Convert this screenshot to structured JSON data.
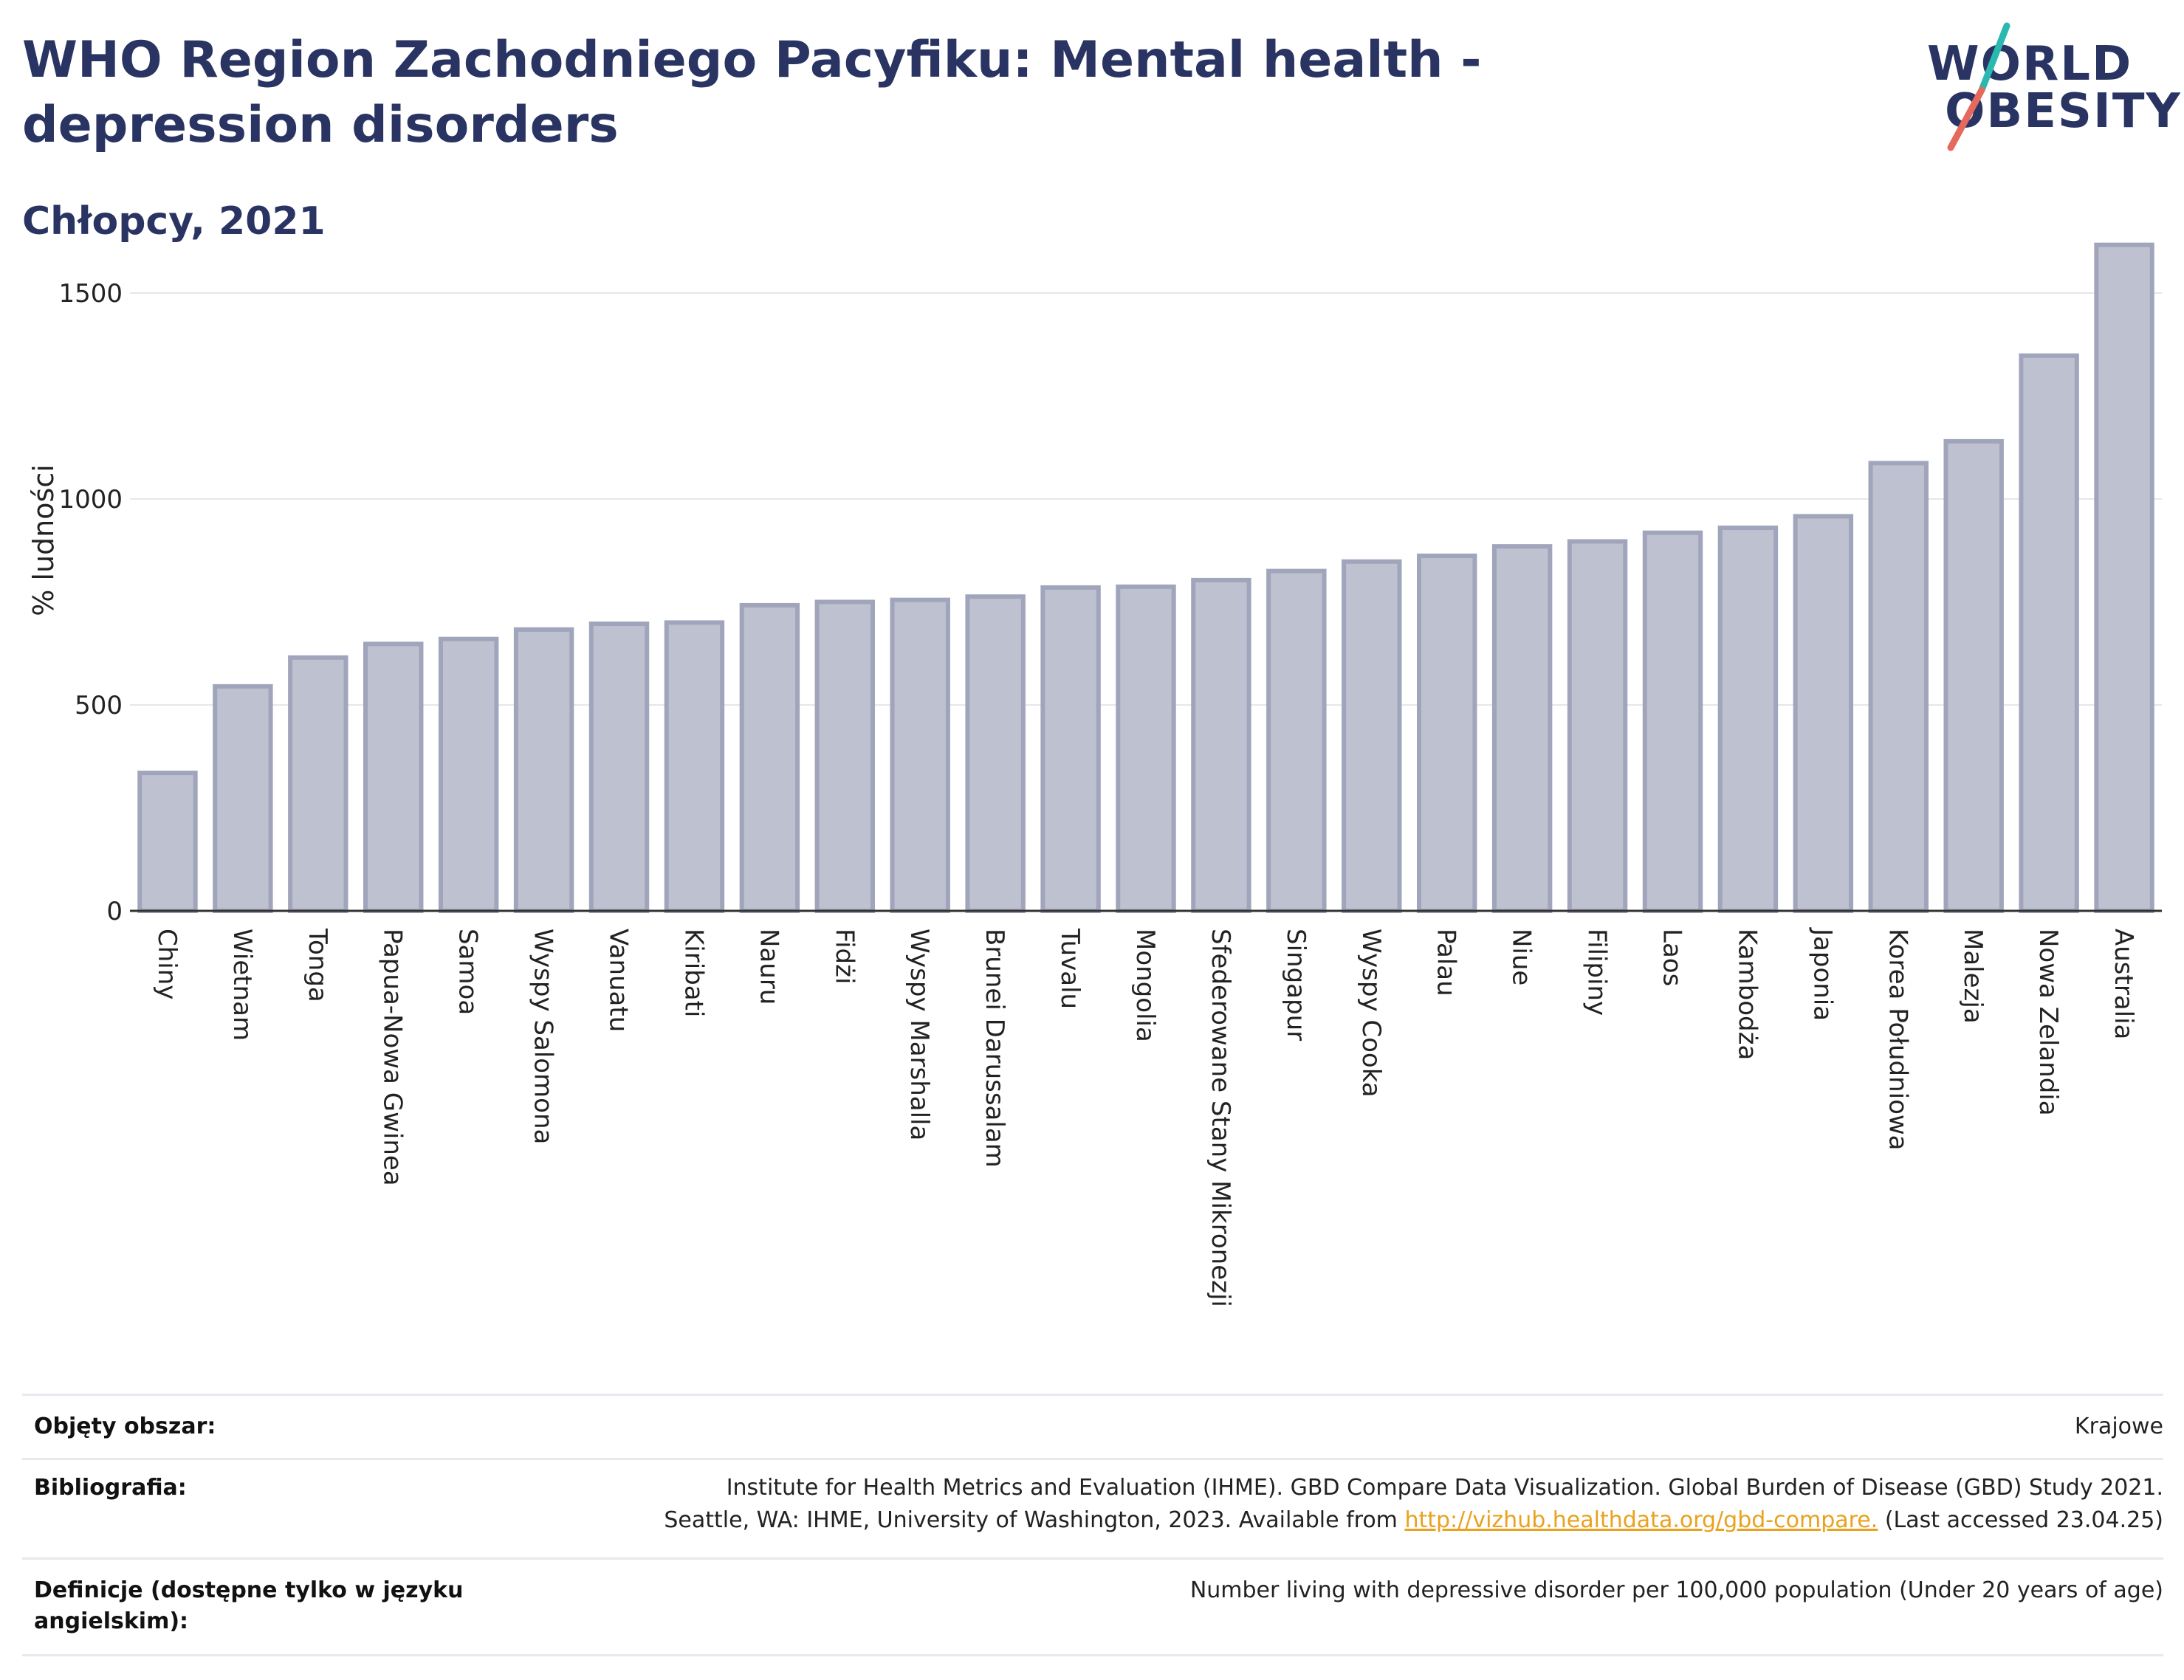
{
  "header": {
    "title": "WHO Region Zachodniego Pacyfiku: Mental health - depression disorders",
    "subtitle": "Chłopcy, 2021"
  },
  "logo": {
    "line1": "WORLD",
    "line2": "OBESITY"
  },
  "colors": {
    "bar_fill": "#bec1cf",
    "bar_stroke": "#a0a5bb",
    "grid": "#e6e6ec",
    "axis": "#333333",
    "link": "#e8a21f",
    "logo_teal": "#2ab8b0",
    "logo_coral": "#e56a5d"
  },
  "chart_data": {
    "type": "bar",
    "ylabel": "% ludności",
    "xlabel": "",
    "ylim": [
      0,
      1620
    ],
    "yticks": [
      0,
      500,
      1000,
      1500
    ],
    "grid": true,
    "categories": [
      "Chiny",
      "Wietnam",
      "Tonga",
      "Papua-Nowa Gwinea",
      "Samoa",
      "Wyspy Salomona",
      "Vanuatu",
      "Kiribati",
      "Nauru",
      "Fidżi",
      "Wyspy Marshalla",
      "Brunei Darussalam",
      "Tuvalu",
      "Mongolia",
      "Sfederowane Stany Mikronezji",
      "Singapur",
      "Wyspy Cooka",
      "Palau",
      "Niue",
      "Filipiny",
      "Laos",
      "Kambodża",
      "Japonia",
      "Korea Południowa",
      "Malezja",
      "Nowa Zelandia",
      "Australia"
    ],
    "values": [
      335,
      545,
      615,
      648,
      660,
      683,
      697,
      700,
      742,
      750,
      755,
      763,
      785,
      787,
      803,
      825,
      848,
      862,
      885,
      897,
      918,
      930,
      958,
      1087,
      1140,
      1348,
      1617
    ]
  },
  "footer": {
    "coverage_label": "Objęty obszar:",
    "coverage_value": "Krajowe",
    "bibliography_label": "Bibliografia:",
    "bibliography_line1": "Institute for Health Metrics and Evaluation (IHME). GBD Compare Data Visualization. Global Burden of Disease (GBD) Study 2021.",
    "bibliography_line2_pre": "Seattle, WA: IHME, University of Washington, 2023. Available from ",
    "bibliography_link": "http://vizhub.healthdata.org/gbd-compare.",
    "bibliography_line2_post": " (Last accessed 23.04.25)",
    "definitions_label_line1": "Definicje (dostępne tylko w języku",
    "definitions_label_line2": "angielskim):",
    "definitions_value": "Number living with depressive disorder per 100,000 population (Under 20 years of age)"
  }
}
